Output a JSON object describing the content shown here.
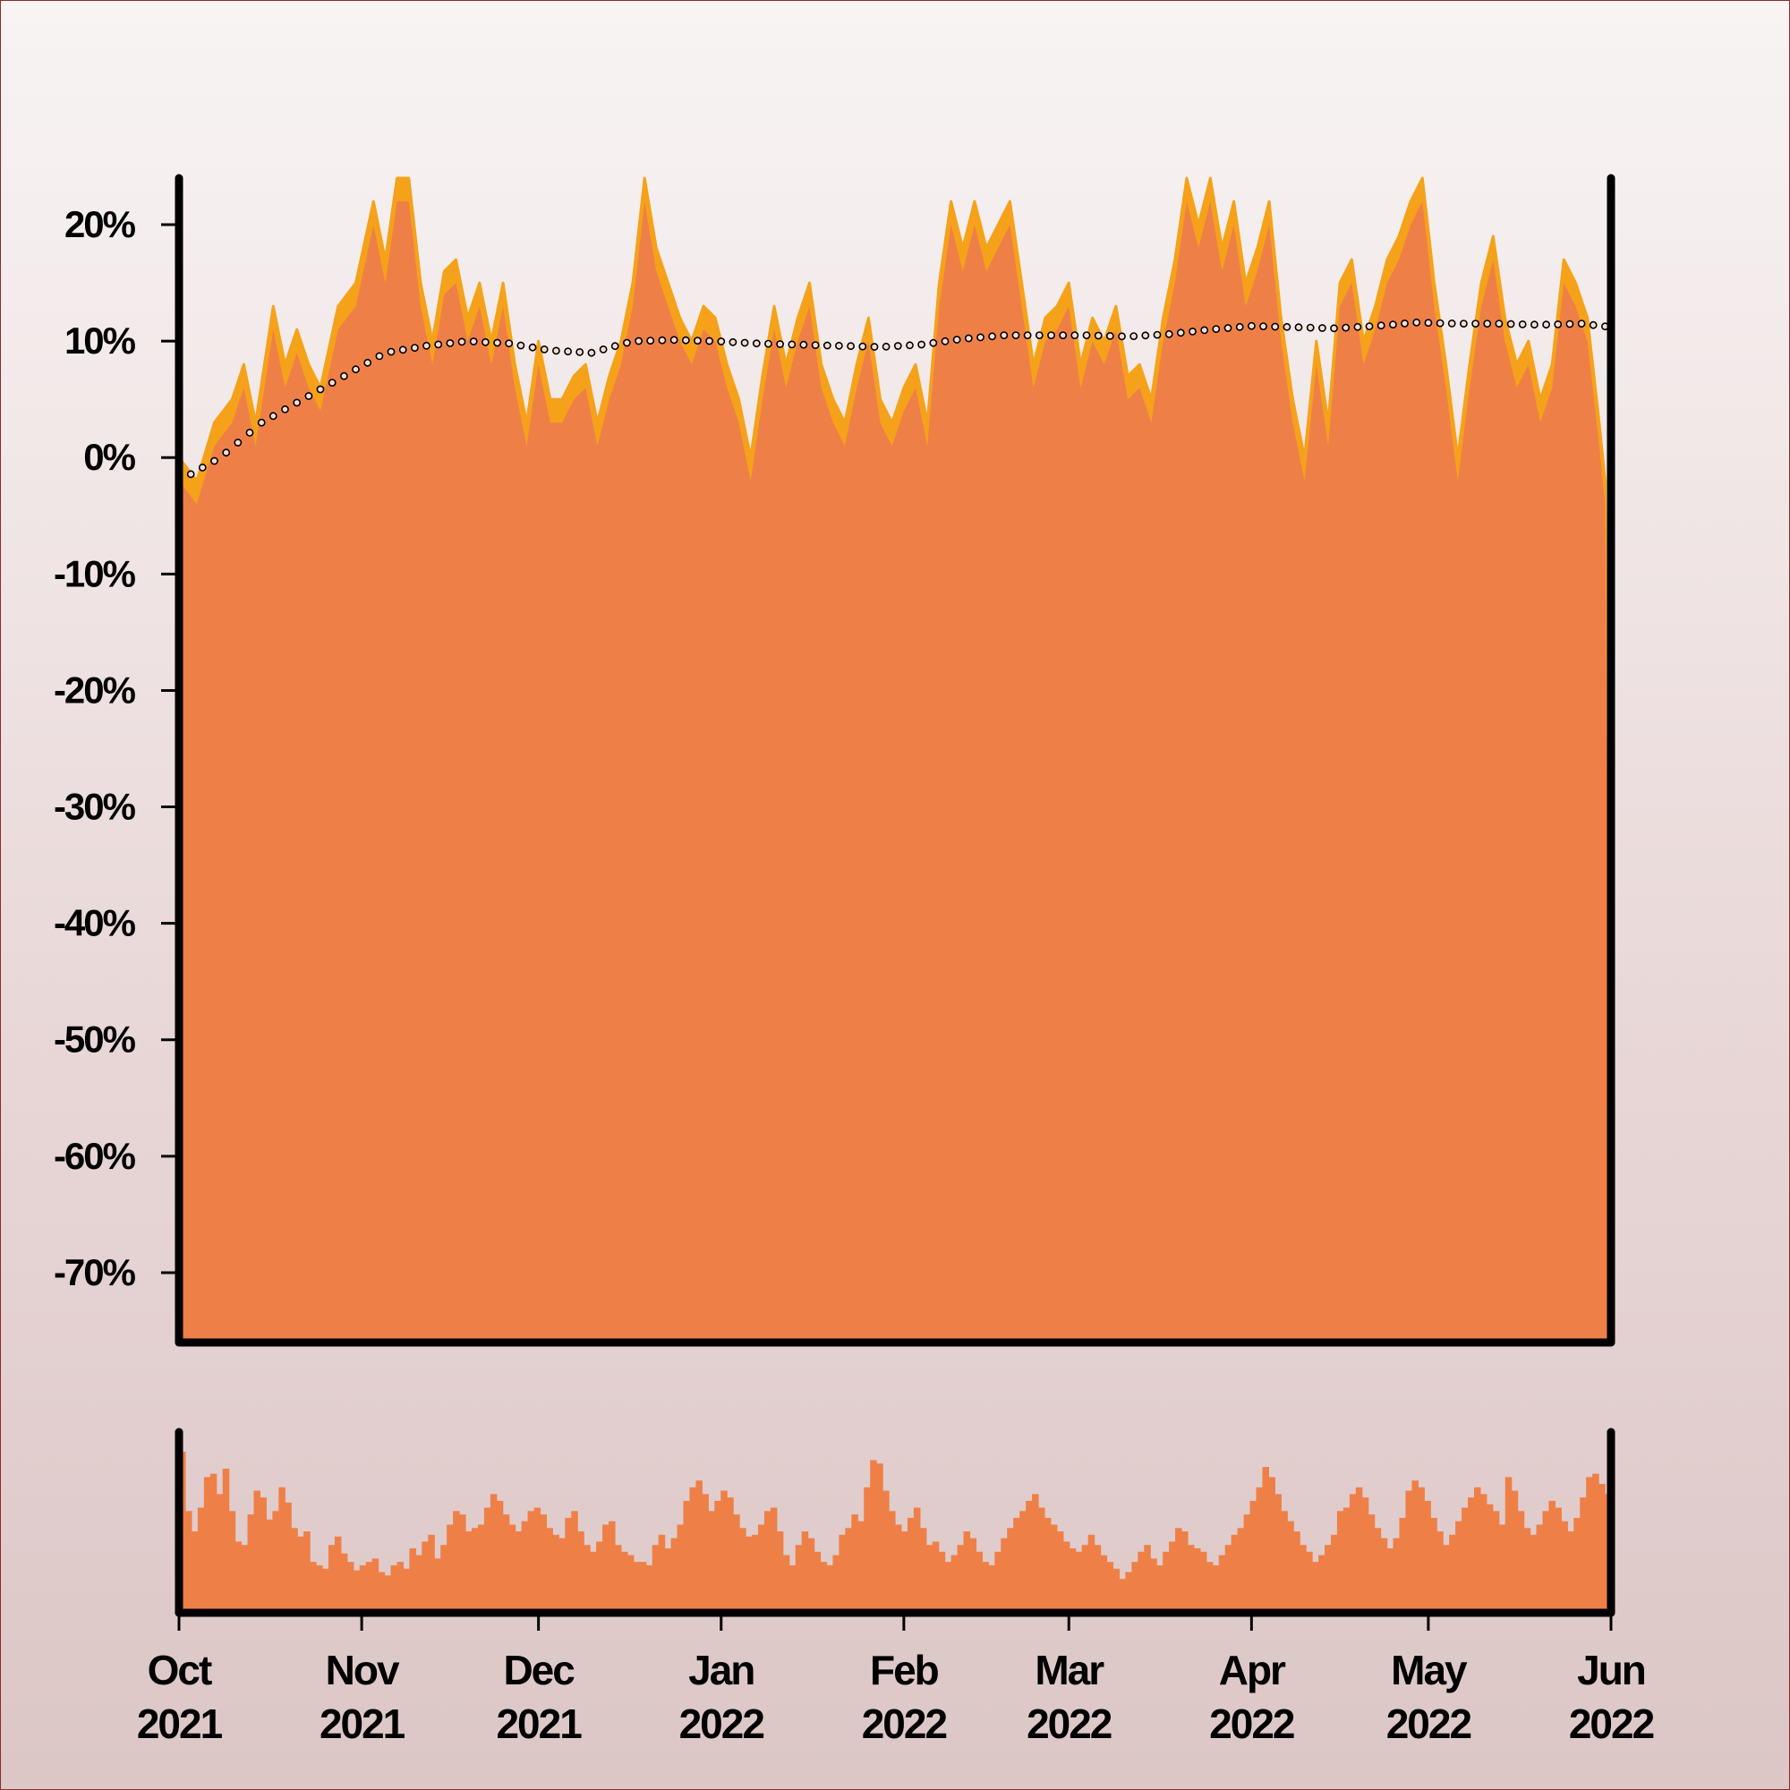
{
  "chart_data": [
    {
      "type": "area",
      "name": "main-panel",
      "x_range": [
        "2021-10-01",
        "2022-06-01"
      ],
      "ylim": [
        -76,
        24
      ],
      "y_ticks": [
        20,
        10,
        0,
        -10,
        -20,
        -30,
        -40,
        -50,
        -60,
        -70
      ],
      "y_tick_labels": [
        "20%",
        "10%",
        "0%",
        "-10%",
        "-20%",
        "-30%",
        "-40%",
        "-50%",
        "-60%",
        "-70%"
      ],
      "grid": false,
      "colors": {
        "area": "#ee8047",
        "upper_band": "#f5a21a",
        "trend_marker": "#000000"
      },
      "upper_series": [
        [
          "2021-10-01",
          0
        ],
        [
          "2021-10-04",
          -2
        ],
        [
          "2021-10-07",
          3
        ],
        [
          "2021-10-10",
          5
        ],
        [
          "2021-10-12",
          8
        ],
        [
          "2021-10-14",
          3
        ],
        [
          "2021-10-17",
          13
        ],
        [
          "2021-10-19",
          8
        ],
        [
          "2021-10-21",
          11
        ],
        [
          "2021-10-23",
          8
        ],
        [
          "2021-10-25",
          6
        ],
        [
          "2021-10-28",
          13
        ],
        [
          "2021-10-31",
          15
        ],
        [
          "2021-11-03",
          22
        ],
        [
          "2021-11-05",
          17
        ],
        [
          "2021-11-07",
          24
        ],
        [
          "2021-11-09",
          24
        ],
        [
          "2021-11-11",
          15
        ],
        [
          "2021-11-13",
          10
        ],
        [
          "2021-11-15",
          16
        ],
        [
          "2021-11-17",
          17
        ],
        [
          "2021-11-19",
          12
        ],
        [
          "2021-11-21",
          15
        ],
        [
          "2021-11-23",
          10
        ],
        [
          "2021-11-25",
          15
        ],
        [
          "2021-11-27",
          8
        ],
        [
          "2021-11-29",
          3
        ],
        [
          "2021-12-01",
          10
        ],
        [
          "2021-12-03",
          5
        ],
        [
          "2021-12-05",
          5
        ],
        [
          "2021-12-07",
          7
        ],
        [
          "2021-12-09",
          8
        ],
        [
          "2021-12-11",
          3
        ],
        [
          "2021-12-13",
          7
        ],
        [
          "2021-12-15",
          10
        ],
        [
          "2021-12-17",
          15
        ],
        [
          "2021-12-19",
          24
        ],
        [
          "2021-12-21",
          18
        ],
        [
          "2021-12-23",
          15
        ],
        [
          "2021-12-25",
          12
        ],
        [
          "2021-12-27",
          10
        ],
        [
          "2021-12-29",
          13
        ],
        [
          "2021-12-31",
          12
        ],
        [
          "2022-01-02",
          8
        ],
        [
          "2022-01-04",
          5
        ],
        [
          "2022-01-06",
          0
        ],
        [
          "2022-01-08",
          7
        ],
        [
          "2022-01-10",
          13
        ],
        [
          "2022-01-12",
          8
        ],
        [
          "2022-01-14",
          12
        ],
        [
          "2022-01-16",
          15
        ],
        [
          "2022-01-18",
          8
        ],
        [
          "2022-01-20",
          5
        ],
        [
          "2022-01-22",
          3
        ],
        [
          "2022-01-24",
          8
        ],
        [
          "2022-01-26",
          12
        ],
        [
          "2022-01-28",
          5
        ],
        [
          "2022-01-30",
          3
        ],
        [
          "2022-02-01",
          6
        ],
        [
          "2022-02-03",
          8
        ],
        [
          "2022-02-05",
          3
        ],
        [
          "2022-02-07",
          15
        ],
        [
          "2022-02-09",
          22
        ],
        [
          "2022-02-11",
          18
        ],
        [
          "2022-02-13",
          22
        ],
        [
          "2022-02-15",
          18
        ],
        [
          "2022-02-17",
          20
        ],
        [
          "2022-02-19",
          22
        ],
        [
          "2022-02-21",
          15
        ],
        [
          "2022-02-23",
          8
        ],
        [
          "2022-02-25",
          12
        ],
        [
          "2022-02-27",
          13
        ],
        [
          "2022-03-01",
          15
        ],
        [
          "2022-03-03",
          8
        ],
        [
          "2022-03-05",
          12
        ],
        [
          "2022-03-07",
          10
        ],
        [
          "2022-03-09",
          13
        ],
        [
          "2022-03-11",
          7
        ],
        [
          "2022-03-13",
          8
        ],
        [
          "2022-03-15",
          5
        ],
        [
          "2022-03-17",
          12
        ],
        [
          "2022-03-19",
          17
        ],
        [
          "2022-03-21",
          24
        ],
        [
          "2022-03-23",
          20
        ],
        [
          "2022-03-25",
          24
        ],
        [
          "2022-03-27",
          18
        ],
        [
          "2022-03-29",
          22
        ],
        [
          "2022-03-31",
          15
        ],
        [
          "2022-04-02",
          18
        ],
        [
          "2022-04-04",
          22
        ],
        [
          "2022-04-06",
          12
        ],
        [
          "2022-04-08",
          5
        ],
        [
          "2022-04-10",
          0
        ],
        [
          "2022-04-12",
          10
        ],
        [
          "2022-04-14",
          3
        ],
        [
          "2022-04-16",
          15
        ],
        [
          "2022-04-18",
          17
        ],
        [
          "2022-04-20",
          10
        ],
        [
          "2022-04-22",
          13
        ],
        [
          "2022-04-24",
          17
        ],
        [
          "2022-04-26",
          19
        ],
        [
          "2022-04-28",
          22
        ],
        [
          "2022-04-30",
          24
        ],
        [
          "2022-05-02",
          15
        ],
        [
          "2022-05-04",
          8
        ],
        [
          "2022-05-06",
          0
        ],
        [
          "2022-05-08",
          8
        ],
        [
          "2022-05-10",
          15
        ],
        [
          "2022-05-12",
          19
        ],
        [
          "2022-05-14",
          12
        ],
        [
          "2022-05-16",
          8
        ],
        [
          "2022-05-18",
          10
        ],
        [
          "2022-05-20",
          5
        ],
        [
          "2022-05-22",
          8
        ],
        [
          "2022-05-24",
          17
        ],
        [
          "2022-05-26",
          15
        ],
        [
          "2022-05-28",
          12
        ],
        [
          "2022-05-30",
          3
        ],
        [
          "2022-05-31",
          -2
        ]
      ],
      "area_offset": -2,
      "trend_series": [
        [
          "2021-10-01",
          -2
        ],
        [
          "2021-10-08",
          0
        ],
        [
          "2021-10-15",
          3
        ],
        [
          "2021-10-22",
          5
        ],
        [
          "2021-10-29",
          7
        ],
        [
          "2021-11-05",
          9
        ],
        [
          "2021-11-12",
          9.6
        ],
        [
          "2021-11-19",
          10
        ],
        [
          "2021-11-26",
          9.8
        ],
        [
          "2021-12-03",
          9.2
        ],
        [
          "2021-12-10",
          9
        ],
        [
          "2021-12-17",
          10
        ],
        [
          "2021-12-24",
          10.1
        ],
        [
          "2021-12-31",
          10
        ],
        [
          "2022-01-07",
          9.8
        ],
        [
          "2022-01-14",
          9.7
        ],
        [
          "2022-01-21",
          9.6
        ],
        [
          "2022-01-28",
          9.5
        ],
        [
          "2022-02-04",
          9.7
        ],
        [
          "2022-02-11",
          10.2
        ],
        [
          "2022-02-18",
          10.5
        ],
        [
          "2022-02-25",
          10.5
        ],
        [
          "2022-03-04",
          10.5
        ],
        [
          "2022-03-11",
          10.4
        ],
        [
          "2022-03-18",
          10.6
        ],
        [
          "2022-03-25",
          11
        ],
        [
          "2022-04-01",
          11.3
        ],
        [
          "2022-04-08",
          11.2
        ],
        [
          "2022-04-15",
          11.1
        ],
        [
          "2022-04-22",
          11.3
        ],
        [
          "2022-04-29",
          11.6
        ],
        [
          "2022-05-06",
          11.5
        ],
        [
          "2022-05-13",
          11.5
        ],
        [
          "2022-05-20",
          11.4
        ],
        [
          "2022-05-27",
          11.5
        ],
        [
          "2022-06-01",
          11.2
        ]
      ]
    },
    {
      "type": "bar",
      "name": "volume-panel",
      "x_range": [
        "2021-10-01",
        "2022-06-01"
      ],
      "x_ticks": [
        "2021-10-01",
        "2021-11-01",
        "2021-12-01",
        "2022-01-01",
        "2022-02-01",
        "2022-03-01",
        "2022-04-01",
        "2022-05-01",
        "2022-06-01"
      ],
      "x_tick_labels": [
        [
          "Oct",
          "2021"
        ],
        [
          "Nov",
          "2021"
        ],
        [
          "Dec",
          "2021"
        ],
        [
          "Jan",
          "2022"
        ],
        [
          "Feb",
          "2022"
        ],
        [
          "Mar",
          "2022"
        ],
        [
          "Apr",
          "2022"
        ],
        [
          "May",
          "2022"
        ],
        [
          "Jun",
          "2022"
        ]
      ],
      "color": "#ee8047",
      "values": [
        95,
        60,
        48,
        62,
        80,
        82,
        70,
        85,
        60,
        42,
        40,
        58,
        72,
        68,
        55,
        60,
        74,
        65,
        50,
        45,
        48,
        30,
        28,
        26,
        40,
        45,
        35,
        30,
        25,
        28,
        30,
        32,
        24,
        22,
        28,
        30,
        26,
        38,
        34,
        42,
        46,
        32,
        40,
        52,
        60,
        58,
        48,
        50,
        52,
        62,
        70,
        66,
        58,
        52,
        48,
        54,
        60,
        62,
        58,
        50,
        46,
        44,
        56,
        60,
        48,
        40,
        36,
        42,
        52,
        54,
        40,
        36,
        34,
        30,
        30,
        28,
        40,
        46,
        38,
        44,
        52,
        66,
        74,
        78,
        70,
        60,
        66,
        72,
        68,
        58,
        50,
        45,
        46,
        52,
        60,
        62,
        48,
        34,
        28,
        40,
        48,
        44,
        36,
        30,
        28,
        34,
        46,
        50,
        58,
        54,
        74,
        90,
        88,
        72,
        60,
        52,
        48,
        56,
        62,
        50,
        40,
        42,
        36,
        30,
        34,
        40,
        48,
        44,
        36,
        30,
        28,
        36,
        44,
        50,
        56,
        60,
        66,
        70,
        62,
        56,
        52,
        48,
        42,
        38,
        36,
        40,
        46,
        40,
        34,
        30,
        26,
        20,
        24,
        30,
        36,
        40,
        32,
        28,
        36,
        42,
        50,
        48,
        40,
        38,
        36,
        30,
        28,
        34,
        40,
        46,
        50,
        58,
        66,
        74,
        86,
        80,
        70,
        60,
        54,
        48,
        40,
        36,
        30,
        34,
        40,
        46,
        60,
        62,
        70,
        74,
        68,
        58,
        50,
        44,
        38,
        44,
        56,
        72,
        78,
        74,
        66,
        56,
        48,
        40,
        46,
        54,
        62,
        68,
        74,
        70,
        64,
        60,
        52,
        80,
        72,
        60,
        50,
        46,
        52,
        60,
        66,
        62,
        54,
        48,
        56,
        68,
        80,
        82,
        76,
        70
      ]
    }
  ]
}
